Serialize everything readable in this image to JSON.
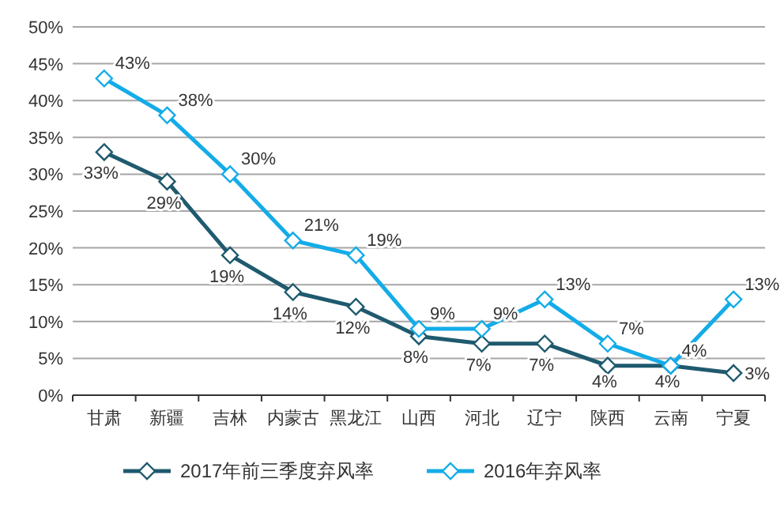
{
  "chart_data": {
    "type": "line",
    "categories": [
      "甘肃",
      "新疆",
      "吉林",
      "内蒙古",
      "黑龙江",
      "山西",
      "河北",
      "辽宁",
      "陕西",
      "云南",
      "宁夏"
    ],
    "series": [
      {
        "name": "2017年前三季度弃风率",
        "color": "#1f5a6e",
        "values": [
          33,
          29,
          19,
          14,
          12,
          8,
          7,
          7,
          4,
          4,
          3
        ],
        "value_labels": [
          "33%",
          "29%",
          "19%",
          "14%",
          "12%",
          "8%",
          "7%",
          "7%",
          "4%",
          "4%",
          "3%"
        ]
      },
      {
        "name": "2016年弃风率",
        "color": "#14ace8",
        "values": [
          43,
          38,
          30,
          21,
          19,
          9,
          9,
          13,
          7,
          4,
          13
        ],
        "value_labels": [
          "43%",
          "38%",
          "30%",
          "21%",
          "19%",
          "9%",
          "9%",
          "13%",
          "7%",
          "4%",
          "13%"
        ]
      }
    ],
    "ylim": [
      0,
      50
    ],
    "yticks": [
      {
        "value": 0,
        "label": "0%"
      },
      {
        "value": 5,
        "label": "5%"
      },
      {
        "value": 10,
        "label": "10%"
      },
      {
        "value": 15,
        "label": "15%"
      },
      {
        "value": 20,
        "label": "20%"
      },
      {
        "value": 25,
        "label": "25%"
      },
      {
        "value": 30,
        "label": "30%"
      },
      {
        "value": 35,
        "label": "35%"
      },
      {
        "value": 40,
        "label": "40%"
      },
      {
        "value": 45,
        "label": "45%"
      },
      {
        "value": 50,
        "label": "50%"
      }
    ],
    "grid": "y",
    "legend": "bottom",
    "marker": "diamond",
    "line_style": "solid"
  }
}
